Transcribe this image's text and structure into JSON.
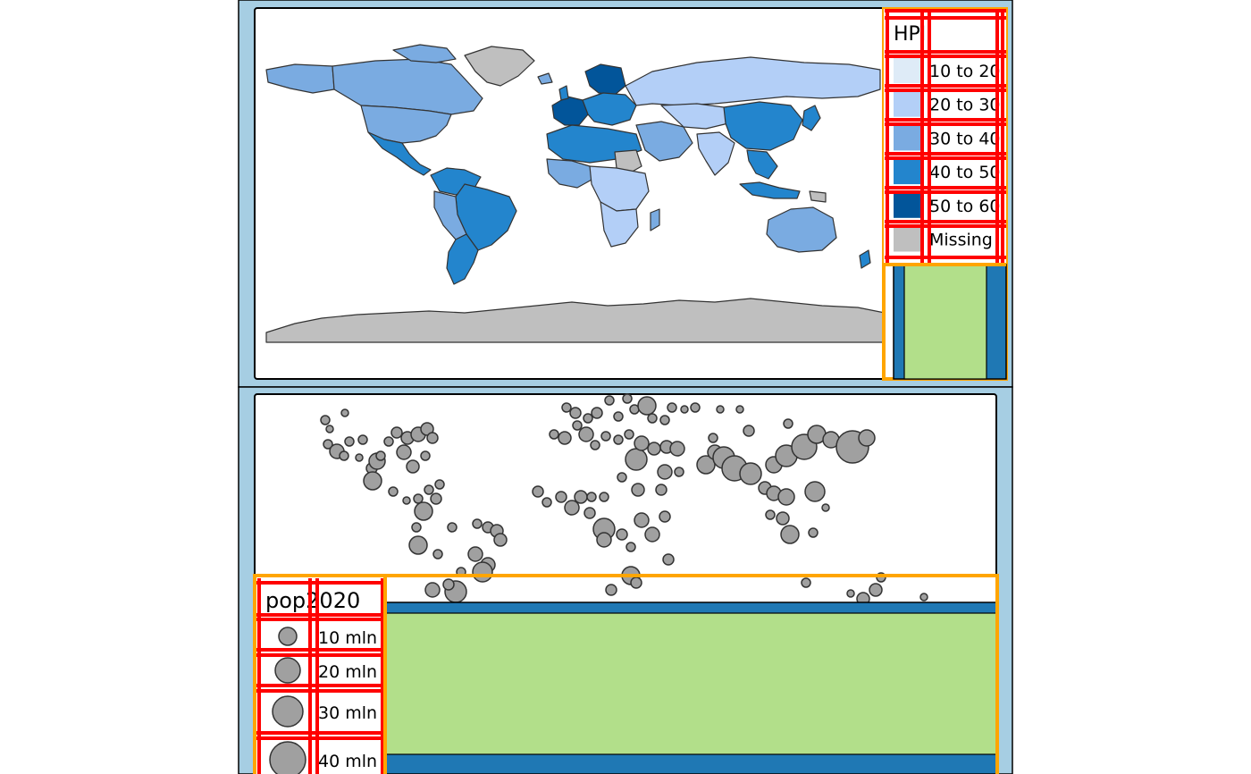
{
  "colors": {
    "outer_bg": "#a6cee3",
    "panel_bg": "#ffffff",
    "frame_outline": "#000000",
    "helper_box": "#ffa500",
    "helper_grid": "#ff0000",
    "legend_fill": "#b2df8a",
    "legend_edge": "#1f78b4",
    "country_border": "#333333",
    "bubble_fill": "#a0a0a0"
  },
  "map_top": {
    "legend": {
      "title": "HPI",
      "items": [
        {
          "label": "10 to 20",
          "color": "#deebf7"
        },
        {
          "label": "20 to 30",
          "color": "#b3cff7"
        },
        {
          "label": "30 to 40",
          "color": "#7aabe1"
        },
        {
          "label": "40 to 50",
          "color": "#2385cd"
        },
        {
          "label": "50 to 60",
          "color": "#02559a"
        },
        {
          "label": "Missing",
          "color": "#bfbfbf"
        }
      ]
    }
  },
  "map_bottom": {
    "legend": {
      "title": "pop2020",
      "items": [
        {
          "label": "10 mln"
        },
        {
          "label": "20 mln"
        },
        {
          "label": "30 mln"
        },
        {
          "label": "40 mln"
        }
      ]
    }
  }
}
